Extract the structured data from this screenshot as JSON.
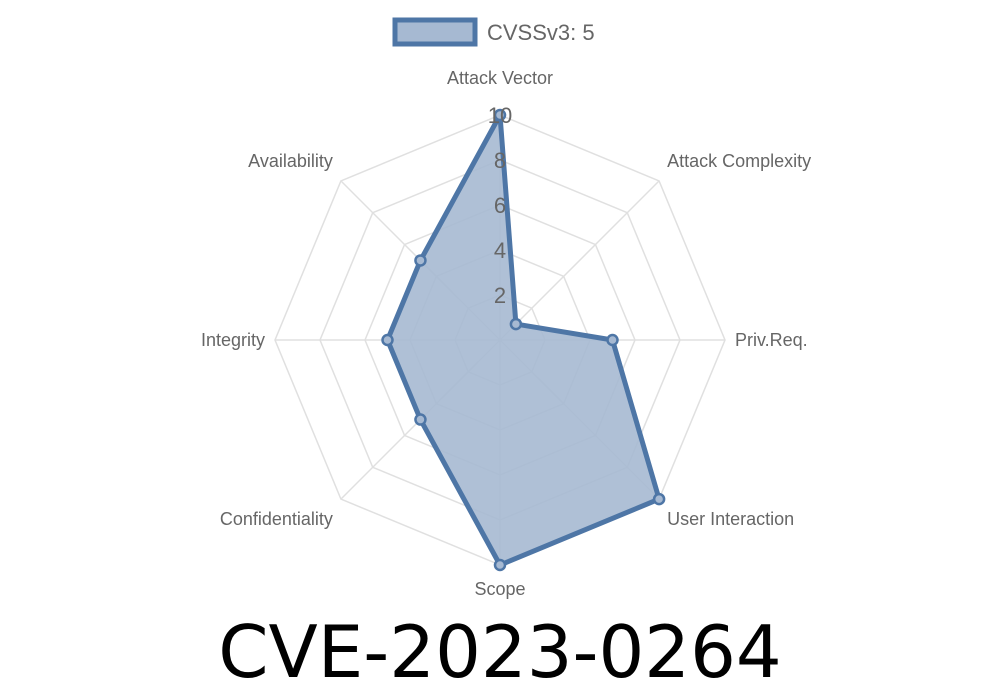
{
  "chart_data": {
    "type": "radar",
    "legend": {
      "label": "CVSSv3: 5",
      "placement": "top"
    },
    "axes": [
      "Attack Vector",
      "Attack Complexity",
      "Priv.Req.",
      "User Interaction",
      "Scope",
      "Confidentiality",
      "Integrity",
      "Availability"
    ],
    "series": [
      {
        "name": "CVSSv3: 5",
        "values": [
          10,
          1,
          5,
          10,
          10,
          5,
          5,
          5
        ]
      }
    ],
    "r_range": [
      0,
      10
    ],
    "ticks": [
      "2",
      "4",
      "6",
      "8",
      "10"
    ],
    "tick_values": [
      2,
      4,
      6,
      8,
      10
    ],
    "grid": true,
    "colors": {
      "stroke": "#4e76a6",
      "fill": "#a6b9d2",
      "grid": "#e0e0e0"
    }
  },
  "title": "CVE-2023-0264"
}
